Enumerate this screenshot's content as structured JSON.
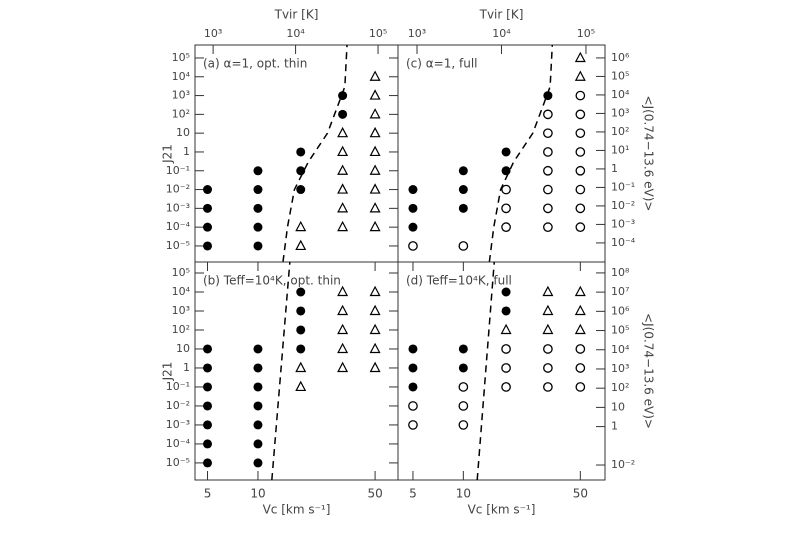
{
  "chart_data": [
    {
      "type": "scatter",
      "title": "(a) α=1, opt. thin",
      "xscale": "log",
      "yscale": "log",
      "xlim": [
        4.21,
        68.5
      ],
      "ylim": [
        1.4e-06,
        490000
      ],
      "yticks": [
        {
          "value": 100000,
          "label": "10⁵"
        },
        {
          "value": 10000,
          "label": "10⁴"
        },
        {
          "value": 1000,
          "label": "10³"
        },
        {
          "value": 100,
          "label": "10²"
        },
        10,
        1,
        {
          "value": 0.1,
          "label": "10⁻¹"
        },
        {
          "value": 0.01,
          "label": "10⁻²"
        },
        {
          "value": 0.001,
          "label": "10⁻³"
        },
        {
          "value": 0.0001,
          "label": "10⁻⁴"
        },
        {
          "value": 1e-05,
          "label": "10⁻⁵"
        }
      ],
      "ylabel": "J21",
      "x2label": "Tvir [K]",
      "x2lim": [
        603,
        174600
      ],
      "x2ticks": [
        {
          "value": 1000,
          "label": "10³"
        },
        {
          "value": 10000,
          "label": "10⁴"
        },
        {
          "value": 100000,
          "label": "10⁵"
        }
      ],
      "series": [
        {
          "marker": "filled",
          "color": "#000000",
          "x": [
            5,
            5,
            5,
            5,
            10,
            10,
            10,
            10,
            10,
            18,
            18,
            18,
            32,
            32
          ],
          "y": [
            0.01,
            0.001,
            0.0001,
            1e-05,
            0.1,
            0.01,
            0.001,
            0.0001,
            1e-05,
            1,
            0.1,
            0.01,
            1000,
            100
          ]
        },
        {
          "marker": "triangle",
          "color": "#000000",
          "x": [
            18,
            18,
            32,
            32,
            32,
            32,
            32,
            32,
            50,
            50,
            50,
            50,
            50,
            50,
            50,
            50,
            50
          ],
          "y": [
            0.0001,
            1e-05,
            10,
            1,
            0.1,
            0.01,
            0.001,
            0.0001,
            10000,
            1000,
            100,
            10,
            1,
            0.1,
            0.01,
            0.001,
            0.0001
          ]
        },
        {
          "marker": "dashed",
          "color": "#000000",
          "x": [
            14.1,
            15,
            16.5,
            20,
            26,
            30,
            33,
            34
          ],
          "y": [
            1.4e-06,
            0.0001,
            0.01,
            0.3,
            10,
            300,
            3000,
            490000
          ]
        }
      ]
    },
    {
      "type": "scatter",
      "title": "(c) α=1, full",
      "xscale": "log",
      "yscale": "log",
      "xlim": [
        4.07,
        70.2
      ],
      "ylim": [
        1.4e-06,
        490000
      ],
      "y2lim": [
        9.3e-06,
        5000000
      ],
      "y2ticks": [
        {
          "value": 1000000,
          "label": "10⁶"
        },
        {
          "value": 100000,
          "label": "10⁵"
        },
        {
          "value": 10000,
          "label": "10⁴"
        },
        {
          "value": 1000,
          "label": "10³"
        },
        {
          "value": 100,
          "label": "10²"
        },
        {
          "value": 10,
          "label": "10¹"
        },
        1,
        {
          "value": 0.1,
          "label": "10⁻¹"
        },
        {
          "value": 0.01,
          "label": "10⁻²"
        },
        {
          "value": 0.001,
          "label": "10⁻³"
        },
        {
          "value": 0.0001,
          "label": "10⁻⁴"
        }
      ],
      "y2label": "<J(0.74−13.6 eV)>",
      "x2label": "Tvir [K]",
      "x2lim": [
        596,
        168000
      ],
      "x2ticks": [
        {
          "value": 1000,
          "label": "10³"
        },
        {
          "value": 10000,
          "label": "10⁴"
        },
        {
          "value": 100000,
          "label": "10⁵"
        }
      ],
      "series": [
        {
          "marker": "filled",
          "color": "#000000",
          "x": [
            5,
            5,
            5,
            10,
            10,
            10,
            18,
            18,
            32
          ],
          "y": [
            0.01,
            0.001,
            0.0001,
            0.1,
            0.01,
            0.001,
            1,
            0.1,
            1000
          ]
        },
        {
          "marker": "open",
          "color": "#000000",
          "x": [
            5,
            10,
            18,
            18,
            18,
            32,
            32,
            32,
            32,
            32,
            32,
            32,
            50,
            50,
            50,
            50,
            50,
            50,
            50,
            50
          ],
          "y": [
            1e-05,
            1e-05,
            0.01,
            0.001,
            0.0001,
            100,
            10,
            1,
            0.1,
            0.01,
            0.001,
            0.0001,
            1000,
            100,
            10,
            1,
            0.1,
            0.01,
            0.001,
            0.0001
          ]
        },
        {
          "marker": "triangle",
          "color": "#000000",
          "x": [
            50,
            50
          ],
          "y": [
            100000,
            10000
          ]
        },
        {
          "marker": "dashed",
          "color": "#000000",
          "x": [
            14.3,
            15.2,
            16.7,
            20,
            26,
            30,
            33,
            34
          ],
          "y": [
            1.4e-06,
            0.0001,
            0.01,
            0.3,
            10,
            300,
            3000,
            490000
          ]
        }
      ]
    },
    {
      "type": "scatter",
      "title": "(b) Teff=10⁴K, opt. thin",
      "xscale": "log",
      "yscale": "log",
      "xlim": [
        4.21,
        68.5
      ],
      "ylim": [
        1.26e-06,
        380000
      ],
      "yticks": [
        {
          "value": 100000,
          "label": "10⁵"
        },
        {
          "value": 10000,
          "label": "10⁴"
        },
        {
          "value": 1000,
          "label": "10³"
        },
        {
          "value": 100,
          "label": "10²"
        },
        10,
        1,
        {
          "value": 0.1,
          "label": "10⁻¹"
        },
        {
          "value": 0.01,
          "label": "10⁻²"
        },
        {
          "value": 0.001,
          "label": "10⁻³"
        },
        {
          "value": 0.0001,
          "label": "10⁻⁴"
        },
        {
          "value": 1e-05,
          "label": "10⁻⁵"
        }
      ],
      "ylabel": "J21",
      "xticks": [
        5,
        10,
        50
      ],
      "xlabel": "Vc [km s⁻¹]",
      "series": [
        {
          "marker": "filled",
          "color": "#000000",
          "x": [
            5,
            5,
            5,
            5,
            5,
            5,
            5,
            10,
            10,
            10,
            10,
            10,
            10,
            10,
            18,
            18,
            18,
            18
          ],
          "y": [
            10,
            1,
            0.1,
            0.01,
            0.001,
            0.0001,
            1e-05,
            10,
            1,
            0.1,
            0.01,
            0.001,
            0.0001,
            1e-05,
            10000,
            1000,
            100,
            10
          ]
        },
        {
          "marker": "triangle",
          "color": "#000000",
          "x": [
            18,
            18,
            32,
            32,
            32,
            32,
            32,
            50,
            50,
            50,
            50,
            50
          ],
          "y": [
            1,
            0.1,
            10000,
            1000,
            100,
            10,
            1,
            10000,
            1000,
            100,
            10,
            1
          ]
        },
        {
          "marker": "dashed",
          "color": "#000000",
          "x": [
            12.1,
            15.5
          ],
          "y": [
            1.26e-06,
            380000
          ]
        }
      ]
    },
    {
      "type": "scatter",
      "title": "(d) Teff=10⁴K, full",
      "xscale": "log",
      "yscale": "log",
      "xlim": [
        4.07,
        70.2
      ],
      "ylim": [
        1.26e-06,
        380000
      ],
      "y2lim": [
        0.00166,
        370000000
      ],
      "y2ticks": [
        {
          "value": 100000000,
          "label": "10⁸"
        },
        {
          "value": 10000000,
          "label": "10⁷"
        },
        {
          "value": 1000000,
          "label": "10⁶"
        },
        {
          "value": 100000,
          "label": "10⁵"
        },
        {
          "value": 10000,
          "label": "10⁴"
        },
        {
          "value": 1000,
          "label": "10³"
        },
        {
          "value": 100,
          "label": "10²"
        },
        10,
        1,
        {
          "value": 0.01,
          "label": "10⁻²"
        }
      ],
      "y2label": "<J(0.74−13.6 eV)>",
      "xticks": [
        5,
        10,
        50
      ],
      "xlabel": "Vc [km s⁻¹]",
      "series": [
        {
          "marker": "filled",
          "color": "#000000",
          "x": [
            5,
            5,
            5,
            10,
            10,
            18,
            18
          ],
          "y": [
            10,
            1,
            0.1,
            10,
            1,
            10000,
            1000
          ]
        },
        {
          "marker": "open",
          "color": "#000000",
          "x": [
            5,
            5,
            10,
            10,
            10,
            18,
            18,
            18,
            32,
            32,
            32,
            50,
            50,
            50
          ],
          "y": [
            0.01,
            0.001,
            0.1,
            0.01,
            0.001,
            10,
            1,
            0.1,
            10,
            1,
            0.1,
            10,
            1,
            0.1
          ]
        },
        {
          "marker": "triangle",
          "color": "#000000",
          "x": [
            18,
            32,
            32,
            32,
            50,
            50,
            50
          ],
          "y": [
            100,
            10000,
            1000,
            100,
            10000,
            1000,
            100
          ]
        },
        {
          "marker": "dashed",
          "color": "#000000",
          "x": [
            12.1,
            15.3
          ],
          "y": [
            1.26e-06,
            380000
          ]
        }
      ]
    }
  ]
}
